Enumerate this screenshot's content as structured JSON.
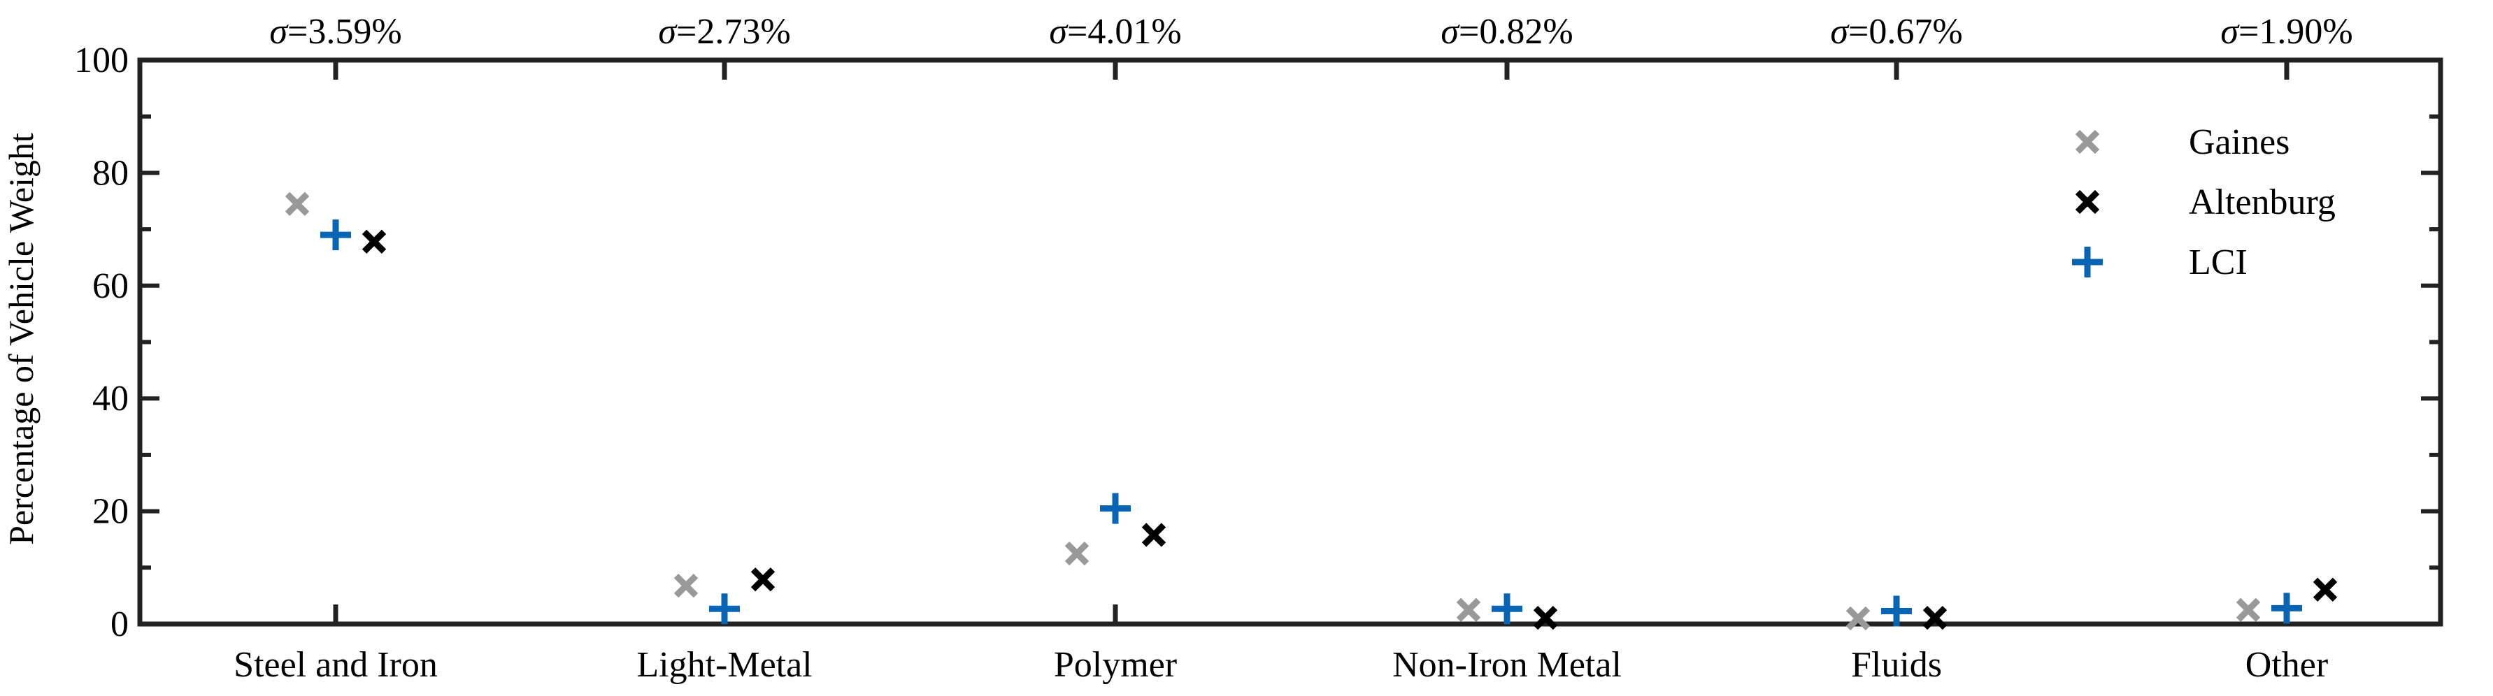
{
  "chart_data": {
    "type": "scatter",
    "categories": [
      "Steel and Iron",
      "Light-Metal",
      "Polymer",
      "Non-Iron Metal",
      "Fluids",
      "Other"
    ],
    "ylabel": "Percentage of Vehicle Weight",
    "ylim": [
      0,
      100
    ],
    "yticks": [
      0,
      20,
      40,
      60,
      80,
      100
    ],
    "grid": false,
    "legend_position": "top-right",
    "sigma_prefix": "σ",
    "sigma_labels": [
      "=3.59%",
      "=2.73%",
      "=4.01%",
      "=0.82%",
      "=0.67%",
      "=1.90%"
    ],
    "series": [
      {
        "name": "Gaines",
        "marker": "x",
        "color": "#999999",
        "values": [
          74.5,
          6.8,
          12.5,
          2.5,
          1.0,
          2.5
        ]
      },
      {
        "name": "LCI",
        "marker": "+",
        "color": "#0a64b4",
        "values": [
          69.0,
          2.7,
          20.5,
          2.7,
          2.3,
          2.8
        ]
      },
      {
        "name": "Altenburg",
        "marker": "x",
        "color": "#000000",
        "values": [
          67.8,
          7.9,
          15.8,
          1.1,
          1.1,
          6.1
        ]
      }
    ],
    "legend_order": [
      "Gaines",
      "Altenburg",
      "LCI"
    ]
  }
}
